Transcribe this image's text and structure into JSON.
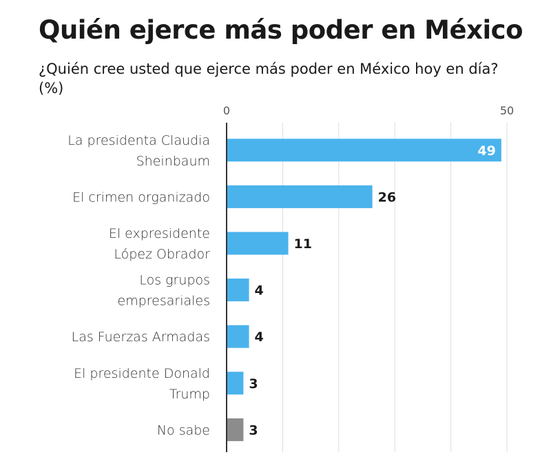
{
  "chart_data": {
    "type": "bar",
    "orientation": "horizontal",
    "title": "Quién ejerce más poder en México",
    "subtitle": "¿Quién cree usted que ejerce más poder en México hoy en día? (%)",
    "categories": [
      [
        "La presidenta Claudia",
        "Sheinbaum"
      ],
      [
        "El crimen organizado"
      ],
      [
        "El expresidente",
        "López Obrador"
      ],
      [
        "Los grupos",
        "empresariales"
      ],
      [
        "Las Fuerzas Armadas"
      ],
      [
        "El presidente Donald",
        "Trump"
      ],
      [
        "No sabe"
      ]
    ],
    "values": [
      49,
      26,
      11,
      4,
      4,
      3,
      3
    ],
    "value_labels": [
      "49",
      "26",
      "11",
      "4",
      "4",
      "3",
      "3"
    ],
    "bar_colors": [
      "#4ab3ec",
      "#4ab3ec",
      "#4ab3ec",
      "#4ab3ec",
      "#4ab3ec",
      "#4ab3ec",
      "#8c8c8c"
    ],
    "xlim": [
      0,
      50
    ],
    "gridlines": [
      0,
      10,
      20,
      30,
      40,
      50
    ],
    "tick_labels": [
      {
        "value": 0,
        "label": "0"
      },
      {
        "value": 50,
        "label": "50"
      }
    ],
    "inside_label_color": "#ffffff",
    "outside_label_color": "#1a1a1a",
    "grid_color": "#dddddd",
    "axis_color": "#333333"
  }
}
